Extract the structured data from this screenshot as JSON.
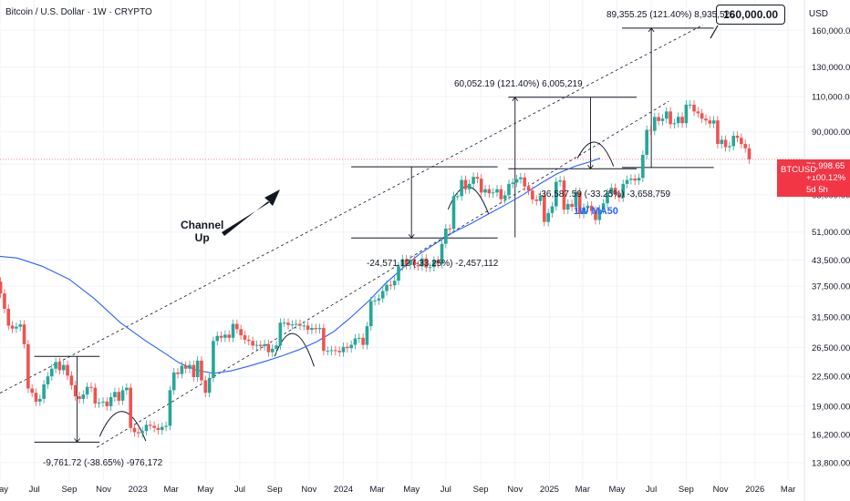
{
  "header": {
    "title": "Bitcoin / U.S. Dollar · 1W · CRYPTO",
    "currency": "USD"
  },
  "price_tag": {
    "symbol": "BTCUSD",
    "price": "76,998.65",
    "change": "+100.12%",
    "countdown": "5d 5h"
  },
  "target_label": "160,000.00",
  "annotations": {
    "top_projection": "89,355.25 (121.40%) 8,935,525",
    "mid_rally": "60,052.19 (121.40%) 6,005,219",
    "drop_2025": "-36,587.59 (-33.25%) -3,658,759",
    "drop_2024": "-24,571.12 (-33.25%) -2,457,112",
    "drop_2022": "-9,761.72 (-38.65%) -976,172",
    "ma_label": "1W MA50",
    "channel_line1": "Channel",
    "channel_line2": "Up"
  },
  "colors": {
    "up": "#26a69a",
    "down": "#ef5350",
    "ma": "#2962ff",
    "price_line": "#f23645",
    "text": "#131722",
    "grid": "#f0f3fa"
  },
  "chart_data": {
    "type": "candlestick",
    "title": "Bitcoin / U.S. Dollar · 1W · CRYPTO",
    "y_axis": {
      "scale": "log",
      "ylim": [
        12500,
        190000
      ],
      "ticks": [
        13800,
        16200,
        19000,
        22500,
        26500,
        31500,
        37500,
        43500,
        51000,
        63000,
        75000,
        90000,
        110000,
        130000,
        160000
      ]
    },
    "x_axis": {
      "xlim": [
        "2022-05-01",
        "2026-03-30"
      ],
      "ticks": [
        {
          "date": "2022-05-01",
          "label": "May"
        },
        {
          "date": "2022-07-01",
          "label": "Jul"
        },
        {
          "date": "2022-09-01",
          "label": "Sep"
        },
        {
          "date": "2022-11-01",
          "label": "Nov"
        },
        {
          "date": "2023-01-01",
          "label": "2023"
        },
        {
          "date": "2023-03-01",
          "label": "Mar"
        },
        {
          "date": "2023-05-01",
          "label": "May"
        },
        {
          "date": "2023-07-01",
          "label": "Jul"
        },
        {
          "date": "2023-09-01",
          "label": "Sep"
        },
        {
          "date": "2023-11-01",
          "label": "Nov"
        },
        {
          "date": "2024-01-01",
          "label": "2024"
        },
        {
          "date": "2024-03-01",
          "label": "Mar"
        },
        {
          "date": "2024-05-01",
          "label": "May"
        },
        {
          "date": "2024-07-01",
          "label": "Jul"
        },
        {
          "date": "2024-09-01",
          "label": "Sep"
        },
        {
          "date": "2024-11-01",
          "label": "Nov"
        },
        {
          "date": "2025-01-01",
          "label": "2025"
        },
        {
          "date": "2025-03-01",
          "label": "Mar"
        },
        {
          "date": "2025-05-01",
          "label": "May"
        },
        {
          "date": "2025-07-01",
          "label": "Jul"
        },
        {
          "date": "2025-09-01",
          "label": "Sep"
        },
        {
          "date": "2025-11-01",
          "label": "Nov"
        },
        {
          "date": "2026-01-01",
          "label": "2026"
        },
        {
          "date": "2026-03-01",
          "label": "Mar"
        }
      ]
    },
    "current_price": 76998.65,
    "series": [
      {
        "type": "weekly_close_path",
        "start_date": "2022-05-02",
        "start_price": 38500,
        "closes": [
          36000,
          33000,
          30000,
          29500,
          29800,
          30200,
          27000,
          21000,
          20500,
          19500,
          19800,
          21500,
          22500,
          23500,
          24400,
          23300,
          24000,
          22600,
          21400,
          20100,
          19800,
          20300,
          21200,
          21100,
          19300,
          19400,
          19500,
          19000,
          20000,
          20600,
          19600,
          20800,
          21100,
          16800,
          16400,
          16300,
          16500,
          17100,
          17000,
          16800,
          16600,
          16900,
          17000,
          20800,
          23000,
          22800,
          23900,
          23500,
          24000,
          22400,
          24600,
          22000,
          20500,
          22300,
          27500,
          28300,
          28000,
          28500,
          28000,
          30300,
          29400,
          28400,
          27700,
          27500,
          26800,
          26900,
          26700,
          27000,
          25800,
          26300,
          26800,
          30500,
          30500,
          30100,
          30200,
          30300,
          30000,
          30000,
          29300,
          29600,
          29400,
          29600,
          26000,
          26000,
          26100,
          26000,
          25800,
          26600,
          26400,
          26900,
          27900,
          28000,
          26900,
          29900,
          34500,
          34600,
          35000,
          36500,
          37800,
          37700,
          38700,
          42000,
          43700,
          42300,
          43600,
          42300,
          42000,
          43900,
          41700,
          41800,
          43400,
          42600,
          47700,
          52000,
          51900,
          62500,
          62500,
          68500,
          65000,
          67000,
          69700,
          69000,
          63800,
          65000,
          63500,
          63800,
          65000,
          61400,
          62800,
          67000,
          67500,
          68800,
          69500,
          66000,
          64500,
          61300,
          60800,
          62700,
          54000,
          56800,
          59000,
          67800,
          68300,
          57900,
          59800,
          58800,
          64000,
          56500,
          58500,
          59200,
          57500,
          54600,
          58000,
          60000,
          63600,
          65500,
          63000,
          62000,
          67000,
          68500,
          69000,
          68300,
          69300,
          79000,
          91000,
          90500,
          97900,
          95700,
          97000,
          101000,
          94000,
          94500,
          98000,
          94500,
          105000,
          105000,
          101000,
          100000,
          97000,
          96000,
          94300,
          96000,
          84000,
          86000,
          82500,
          83000,
          88000,
          87000,
          84000,
          82000,
          76998
        ]
      },
      {
        "name": "1W MA50",
        "type": "line",
        "points": [
          [
            "2022-04-25",
            44500
          ],
          [
            "2022-06-01",
            44000
          ],
          [
            "2022-07-15",
            42000
          ],
          [
            "2022-09-01",
            39000
          ],
          [
            "2022-10-15",
            35000
          ],
          [
            "2022-12-01",
            30500
          ],
          [
            "2023-01-15",
            27500
          ],
          [
            "2023-02-15",
            25800
          ],
          [
            "2023-03-15",
            24300
          ],
          [
            "2023-04-15",
            23300
          ],
          [
            "2023-05-15",
            22900
          ],
          [
            "2023-06-15",
            23200
          ],
          [
            "2023-07-15",
            23800
          ],
          [
            "2023-08-15",
            24500
          ],
          [
            "2023-09-15",
            25300
          ],
          [
            "2023-10-15",
            26200
          ],
          [
            "2023-11-15",
            27400
          ],
          [
            "2023-12-15",
            29000
          ],
          [
            "2024-01-15",
            31500
          ],
          [
            "2024-02-15",
            34500
          ],
          [
            "2024-03-15",
            38000
          ],
          [
            "2024-04-15",
            41500
          ],
          [
            "2024-05-15",
            45000
          ],
          [
            "2024-06-15",
            48000
          ],
          [
            "2024-07-15",
            51000
          ],
          [
            "2024-08-15",
            53500
          ],
          [
            "2024-09-15",
            56500
          ],
          [
            "2024-10-15",
            59500
          ],
          [
            "2024-11-15",
            63000
          ],
          [
            "2024-12-15",
            67000
          ],
          [
            "2025-01-15",
            71000
          ],
          [
            "2025-02-15",
            74000
          ],
          [
            "2025-03-15",
            76000
          ],
          [
            "2025-04-01",
            77500
          ]
        ]
      }
    ],
    "channel": {
      "upper": [
        [
          "2022-07-15",
          23200
        ],
        [
          "2025-10-01",
          165000
        ]
      ],
      "lower": [
        [
          "2022-10-01",
          14500
        ],
        [
          "2025-08-01",
          107000
        ]
      ]
    },
    "measures": [
      {
        "label": "89,355.25 (121.40%) 8,935,525",
        "x": "2025-07-01",
        "from": 73500,
        "to": 162000
      },
      {
        "label": "60,052.19 (121.40%) 6,005,219",
        "x": "2024-11-01",
        "from": 49500,
        "to": 109500
      },
      {
        "label": "-36,587.59 (-33.25%) -3,658,759",
        "x": "2025-03-15",
        "from": 109500,
        "to": 73000
      },
      {
        "label": "-24,571.12 (-33.25%) -2,457,112",
        "x": "2024-05-01",
        "from": 73800,
        "to": 49300
      },
      {
        "label": "-9,761.72 (-38.65%) -976,172",
        "x": "2022-09-15",
        "from": 25200,
        "to": 15500
      }
    ],
    "target_price": 160000
  }
}
